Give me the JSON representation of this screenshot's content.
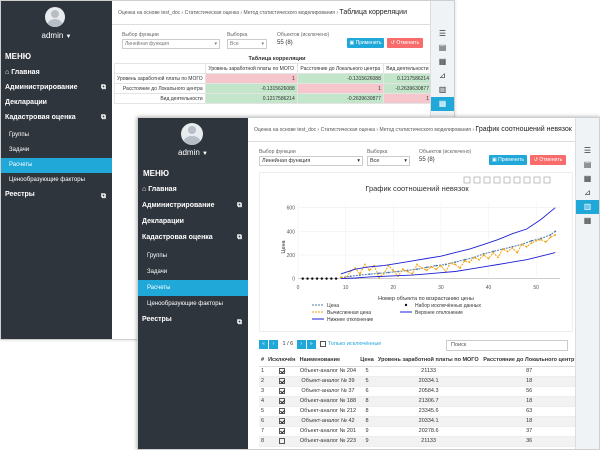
{
  "user": {
    "name": "admin"
  },
  "menu": {
    "title": "МЕНЮ",
    "home": "Главная",
    "admin": "Администрирование",
    "decl": "Декларации",
    "cadastral": "Кадастровая оценка",
    "groups": "Группы",
    "tasks": "Задачи",
    "calcs": "Расчеты",
    "factors": "Ценообразующие факторы",
    "registries": "Реестры"
  },
  "w1": {
    "crumbs": [
      "Оценка на основе test_doc",
      "Статистическая оценка",
      "Метод статистического моделирования"
    ],
    "crumb_active": "Таблица корреляции",
    "func_label": "Выбор функции",
    "func_value": "Линейная функция",
    "sel_label": "Выборка",
    "sel_value": "Все",
    "obj_label": "Объектов (исключено)",
    "obj_value": "55 (8)",
    "apply": "Применить",
    "cancel": "Отменить",
    "table_title": "Таблица корреляции",
    "cols": [
      "Уровень заработной платы по МОГО",
      "Расстояние до Локального центра",
      "Вид деятельности"
    ],
    "rows": [
      {
        "label": "Уровень заработной платы по МОГО",
        "v": [
          "1",
          "-0.1315626088",
          "0.1217586214"
        ],
        "c": [
          "r",
          "g",
          "g"
        ]
      },
      {
        "label": "Расстояние до Локального центра",
        "v": [
          "-0.1315626088",
          "1",
          "-0.2639630877"
        ],
        "c": [
          "g",
          "r",
          "g"
        ]
      },
      {
        "label": "Вид деятельности",
        "v": [
          "0.1217586214",
          "-0.2639630877",
          "1"
        ],
        "c": [
          "g",
          "g",
          "r"
        ]
      }
    ]
  },
  "w2": {
    "crumbs": [
      "Оценка на основе test_doc",
      "Статистическая оценка",
      "Метод статистического моделирования"
    ],
    "crumb_active": "График соотношений невязок",
    "func_label": "Выбор функции",
    "func_value": "Линейная функция",
    "sel_label": "Выборка",
    "sel_value": "Все",
    "obj_label": "Объектов (исключено)",
    "obj_value": "55 (8)",
    "apply": "Применить",
    "cancel": "Отменить",
    "pager_text": "1 / 6",
    "only_excluded": "Только исключённые",
    "search_placeholder": "Поиск",
    "table": {
      "headers": [
        "#",
        "Исключён",
        "Наименование",
        "Цена",
        "Уровень заработной платы по МОГО",
        "Расстояние до Локального центр"
      ],
      "rows": [
        {
          "n": "1",
          "chk": true,
          "name": "Объект-аналог № 204",
          "price": "5",
          "wage": "21133",
          "dist": "87"
        },
        {
          "n": "2",
          "chk": true,
          "name": "Объект-аналог № 39",
          "price": "5",
          "wage": "20334.1",
          "dist": "18"
        },
        {
          "n": "3",
          "chk": true,
          "name": "Объект-аналог № 37",
          "price": "6",
          "wage": "20584.3",
          "dist": "56"
        },
        {
          "n": "4",
          "chk": true,
          "name": "Объект-аналог № 188",
          "price": "8",
          "wage": "21306.7",
          "dist": "18"
        },
        {
          "n": "5",
          "chk": true,
          "name": "Объект-аналог № 212",
          "price": "8",
          "wage": "23345.6",
          "dist": "63"
        },
        {
          "n": "6",
          "chk": true,
          "name": "Объект-аналог № 42",
          "price": "8",
          "wage": "20334.1",
          "dist": "18"
        },
        {
          "n": "7",
          "chk": true,
          "name": "Объект-аналог № 201",
          "price": "9",
          "wage": "20278.6",
          "dist": "37"
        },
        {
          "n": "8",
          "chk": false,
          "name": "Объект-аналог № 223",
          "price": "9",
          "wage": "21133",
          "dist": "36"
        }
      ]
    }
  },
  "colors": {
    "sidebar": "#2f353d",
    "accent": "#20a8d8",
    "danger": "#f86c6b",
    "price": "#4e79a7",
    "calc": "#f0a30a",
    "excluded": "#111111",
    "band": "#1f1fd6"
  },
  "icons": [
    "list-icon",
    "bar-chart-icon",
    "table-icon",
    "line-chart-icon",
    "signal-icon",
    "grid-icon"
  ],
  "chart_data": {
    "type": "line",
    "title": "График соотношений невязок",
    "xlabel": "Номер объекта по возрастанию цены",
    "ylabel": "Цена",
    "xlim": [
      0,
      55
    ],
    "ylim": [
      -20,
      640
    ],
    "xticks": [
      0,
      10,
      20,
      30,
      40,
      50
    ],
    "yticks": [
      0,
      200,
      400,
      600
    ],
    "series": [
      {
        "name": "Цена",
        "style": "dashed",
        "color": "#4e79a7",
        "x": [
          9,
          11,
          13,
          15,
          17,
          19,
          21,
          23,
          25,
          27,
          29,
          31,
          33,
          35,
          37,
          39,
          41,
          43,
          45,
          47,
          49,
          51,
          53,
          54
        ],
        "y": [
          10,
          20,
          30,
          38,
          45,
          52,
          60,
          70,
          80,
          95,
          110,
          120,
          140,
          160,
          180,
          210,
          230,
          250,
          270,
          290,
          320,
          340,
          370,
          400
        ]
      },
      {
        "name": "Вычисленная цена",
        "style": "dashed",
        "color": "#f0a30a",
        "x": [
          9,
          10,
          11,
          12,
          13,
          14,
          15,
          16,
          17,
          18,
          19,
          20,
          21,
          22,
          23,
          24,
          25,
          26,
          27,
          28,
          29,
          30,
          31,
          32,
          33,
          34,
          35,
          36,
          37,
          38,
          39,
          40,
          41,
          42,
          43,
          44,
          45,
          46,
          47,
          48,
          49,
          50,
          51,
          52,
          53,
          54
        ],
        "y": [
          10,
          5,
          60,
          90,
          40,
          120,
          70,
          110,
          10,
          40,
          110,
          70,
          20,
          80,
          60,
          40,
          120,
          90,
          70,
          100,
          80,
          110,
          60,
          130,
          120,
          90,
          150,
          140,
          180,
          160,
          200,
          170,
          220,
          180,
          250,
          230,
          260,
          220,
          290,
          270,
          300,
          320,
          330,
          310,
          350,
          370
        ]
      },
      {
        "name": "Набор исключённых данных",
        "style": "points",
        "color": "#111111",
        "x": [
          1,
          2,
          3,
          4,
          5,
          6,
          7,
          8
        ],
        "y": [
          0,
          0,
          0,
          0,
          0,
          0,
          0,
          0
        ]
      },
      {
        "name": "Нижнее отклонение",
        "style": "solid",
        "color": "#1f1fd6",
        "x": [
          9,
          12,
          15,
          18,
          21,
          24,
          27,
          30,
          33,
          36,
          39,
          42,
          45,
          48,
          51,
          54
        ],
        "y": [
          0,
          5,
          15,
          20,
          25,
          30,
          40,
          50,
          60,
          80,
          100,
          120,
          140,
          160,
          190,
          220
        ]
      },
      {
        "name": "Верхнее отклонение",
        "style": "solid",
        "color": "#1f1fd6",
        "x": [
          9,
          12,
          15,
          18,
          21,
          24,
          27,
          30,
          33,
          36,
          39,
          42,
          45,
          48,
          51,
          54
        ],
        "y": [
          40,
          80,
          100,
          110,
          130,
          150,
          170,
          190,
          220,
          250,
          290,
          330,
          380,
          420,
          500,
          600
        ]
      }
    ]
  }
}
